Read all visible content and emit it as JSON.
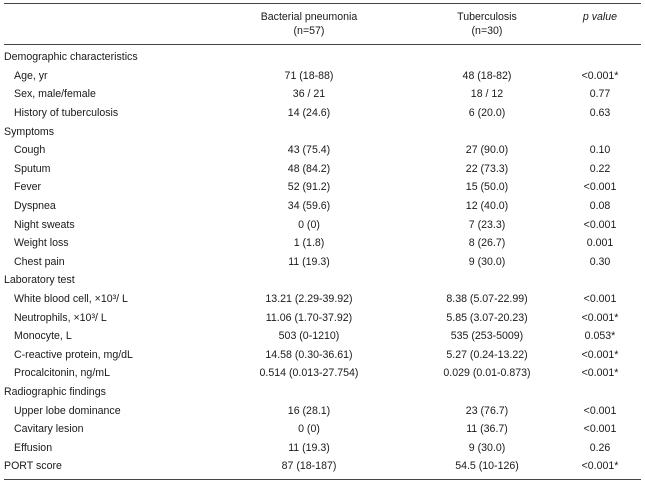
{
  "header": {
    "col1_line1": "Bacterial pneumonia",
    "col1_line2": "(n=57)",
    "col2_line1": "Tuberculosis",
    "col2_line2": "(n=30)",
    "col3": "p value"
  },
  "rows": [
    {
      "type": "section",
      "label": "Demographic characteristics",
      "bp": "",
      "tb": "",
      "p": ""
    },
    {
      "type": "item",
      "label": "Age, yr",
      "bp": "71 (18-88)",
      "tb": "48 (18-82)",
      "p": "<0.001*"
    },
    {
      "type": "item",
      "label": "Sex, male/female",
      "bp": "36 / 21",
      "tb": "18 / 12",
      "p": "0.77"
    },
    {
      "type": "item",
      "label": "History of tuberculosis",
      "bp": "14 (24.6)",
      "tb": "6 (20.0)",
      "p": "0.63"
    },
    {
      "type": "section",
      "label": "Symptoms",
      "bp": "",
      "tb": "",
      "p": ""
    },
    {
      "type": "item",
      "label": "Cough",
      "bp": "43 (75.4)",
      "tb": "27 (90.0)",
      "p": "0.10"
    },
    {
      "type": "item",
      "label": "Sputum",
      "bp": "48 (84.2)",
      "tb": "22 (73.3)",
      "p": "0.22"
    },
    {
      "type": "item",
      "label": "Fever",
      "bp": "52 (91.2)",
      "tb": "15 (50.0)",
      "p": "<0.001"
    },
    {
      "type": "item",
      "label": "Dyspnea",
      "bp": "34 (59.6)",
      "tb": "12 (40.0)",
      "p": "0.08"
    },
    {
      "type": "item",
      "label": "Night sweats",
      "bp": "0 (0)",
      "tb": "7 (23.3)",
      "p": "<0.001"
    },
    {
      "type": "item",
      "label": "Weight loss",
      "bp": "1 (1.8)",
      "tb": "8 (26.7)",
      "p": "0.001"
    },
    {
      "type": "item",
      "label": "Chest pain",
      "bp": "11 (19.3)",
      "tb": "9 (30.0)",
      "p": "0.30"
    },
    {
      "type": "section",
      "label": "Laboratory test",
      "bp": "",
      "tb": "",
      "p": ""
    },
    {
      "type": "item",
      "label": "White blood cell, ×10³/  L",
      "bp": "13.21 (2.29-39.92)",
      "tb": "8.38 (5.07-22.99)",
      "p": "<0.001"
    },
    {
      "type": "item",
      "label": "Neutrophils, ×10³/  L",
      "bp": "11.06 (1.70-37.92)",
      "tb": "5.85 (3.07-20.23)",
      "p": "<0.001*"
    },
    {
      "type": "item",
      "label": "Monocyte,  L",
      "bp": "503 (0-1210)",
      "tb": "535 (253-5009)",
      "p": "0.053*"
    },
    {
      "type": "item",
      "label": "C-reactive protein, mg/dL",
      "bp": "14.58 (0.30-36.61)",
      "tb": "5.27 (0.24-13.22)",
      "p": "<0.001*"
    },
    {
      "type": "item",
      "label": "Procalcitonin, ng/mL",
      "bp": "0.514 (0.013-27.754)",
      "tb": "0.029 (0.01-0.873)",
      "p": "<0.001*"
    },
    {
      "type": "section",
      "label": "Radiographic findings",
      "bp": "",
      "tb": "",
      "p": ""
    },
    {
      "type": "item",
      "label": "Upper lobe dominance",
      "bp": "16 (28.1)",
      "tb": "23 (76.7)",
      "p": "<0.001"
    },
    {
      "type": "item",
      "label": "Cavitary lesion",
      "bp": "0 (0)",
      "tb": "11 (36.7)",
      "p": "<0.001"
    },
    {
      "type": "item",
      "label": "Effusion",
      "bp": "11 (19.3)",
      "tb": "9 (30.0)",
      "p": "0.26"
    },
    {
      "type": "section",
      "label": "PORT score",
      "bp": "87 (18-187)",
      "tb": "54.5 (10-126)",
      "p": "<0.001*"
    }
  ]
}
